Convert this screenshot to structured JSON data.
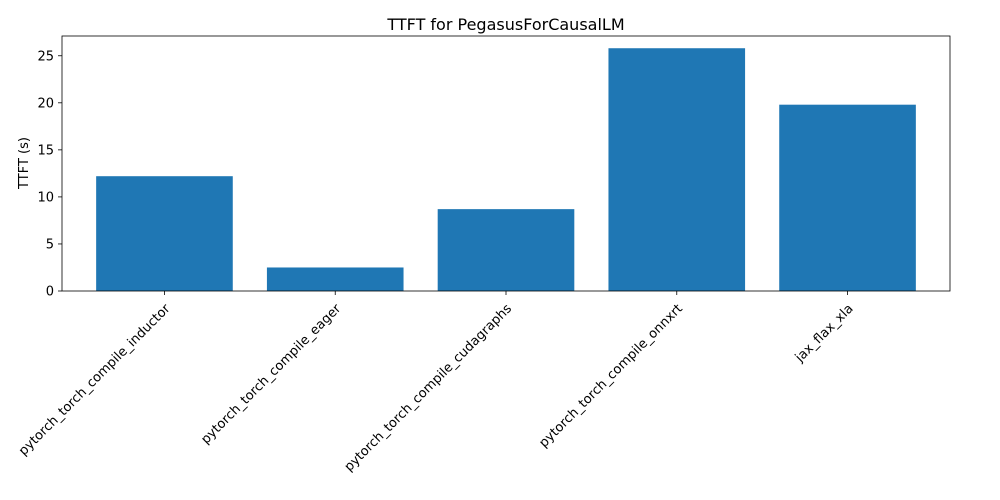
{
  "chart_data": {
    "type": "bar",
    "title": "TTFT for PegasusForCausalLM",
    "xlabel": "",
    "ylabel": "TTFT (s)",
    "categories": [
      "pytorch_torch_compile_inductor",
      "pytorch_torch_compile_eager",
      "pytorch_torch_compile_cudagraphs",
      "pytorch_torch_compile_onnxrt",
      "jax_flax_xla"
    ],
    "values": [
      12.2,
      2.5,
      8.7,
      25.8,
      19.8
    ],
    "ylim": [
      0,
      27.1
    ],
    "yticks": [
      0,
      5,
      10,
      15,
      20,
      25
    ],
    "bar_color": "#1f77b4",
    "grid": false,
    "legend": false
  }
}
